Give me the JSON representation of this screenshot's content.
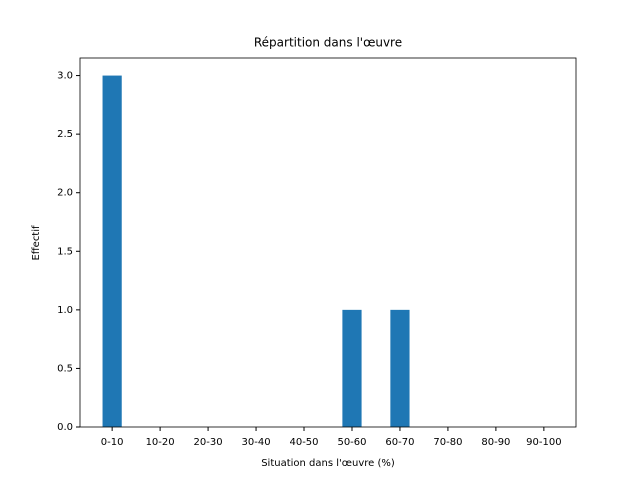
{
  "chart_data": {
    "type": "bar",
    "title": "Répartition dans l'œuvre",
    "xlabel": "Situation dans l'œuvre (%)",
    "ylabel": "Effectif",
    "categories": [
      "0-10",
      "10-20",
      "20-30",
      "30-40",
      "40-50",
      "50-60",
      "60-70",
      "70-80",
      "80-90",
      "90-100"
    ],
    "values": [
      3,
      0,
      0,
      0,
      0,
      1,
      1,
      0,
      0,
      0
    ],
    "color": "#1f77b4",
    "ylim": [
      0,
      3.15
    ],
    "yticks": [
      {
        "value": 0,
        "label": "0.0"
      },
      {
        "value": 0.5,
        "label": "0.5"
      },
      {
        "value": 1,
        "label": "1.0"
      },
      {
        "value": 1.5,
        "label": "1.5"
      },
      {
        "value": 2,
        "label": "2.0"
      },
      {
        "value": 2.5,
        "label": "2.5"
      },
      {
        "value": 3,
        "label": "3.0"
      }
    ],
    "grid": false
  }
}
